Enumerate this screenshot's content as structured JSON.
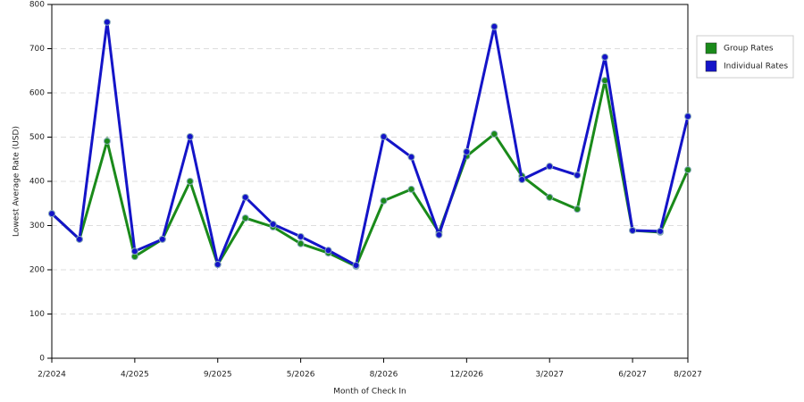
{
  "chart_data": {
    "type": "line",
    "x_label": "Month of Check In",
    "y_label": "Lowest Average Rate (USD)",
    "categories": [
      "2/2024",
      null,
      null,
      "4/2025",
      null,
      null,
      "9/2025",
      null,
      null,
      "5/2026",
      null,
      null,
      "8/2026",
      null,
      null,
      "12/2026",
      null,
      null,
      "3/2027",
      null,
      null,
      "6/2027",
      null,
      "8/2027"
    ],
    "series": [
      {
        "name": "Group Rates",
        "color": "#1a8a1a",
        "values": [
          327,
          269,
          491,
          230,
          269,
          400,
          212,
          317,
          297,
          259,
          238,
          208,
          356,
          382,
          285,
          457,
          507,
          412,
          364,
          337,
          628,
          289,
          285,
          426
        ]
      },
      {
        "name": "Individual Rates",
        "color": "#1414c8",
        "values": [
          327,
          269,
          760,
          242,
          269,
          501,
          212,
          364,
          303,
          275,
          244,
          210,
          501,
          455,
          279,
          467,
          750,
          404,
          434,
          414,
          681,
          289,
          287,
          547
        ]
      }
    ],
    "ylim": [
      0,
      800
    ],
    "yticks": [
      0,
      100,
      200,
      300,
      400,
      500,
      600,
      700,
      800
    ],
    "grid": true,
    "legend": "top-right"
  }
}
